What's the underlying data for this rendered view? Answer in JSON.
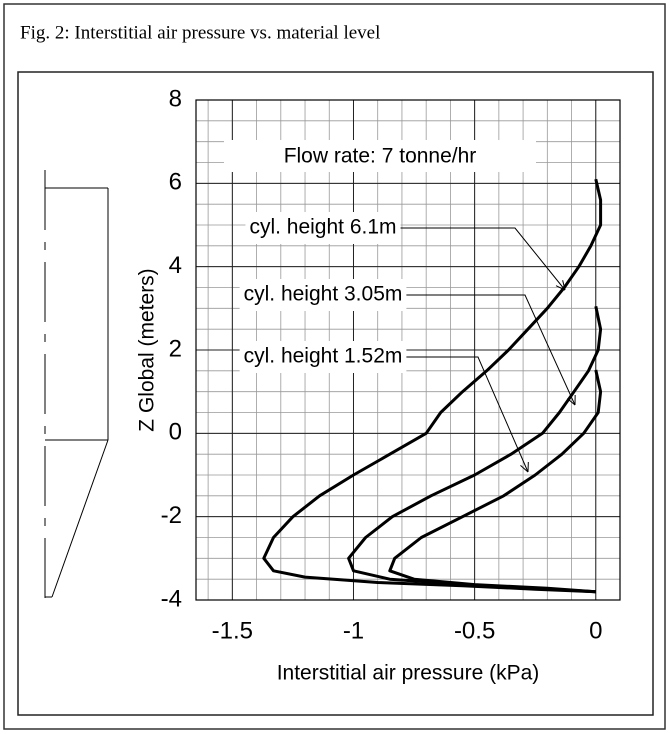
{
  "chart_data": {
    "type": "line",
    "caption": "Fig. 2: Interstitial air pressure vs. material level",
    "title": "Flow rate: 7 tonne/hr",
    "x_label": "Interstitial air pressure (kPa)",
    "y_label": "Z Global (meters)",
    "xlim": [
      -1.65,
      0.1
    ],
    "ylim": [
      -4,
      8
    ],
    "xticks": [
      -1.5,
      -1,
      -0.5,
      0
    ],
    "yticks": [
      -4,
      -2,
      0,
      2,
      4,
      6,
      8
    ],
    "minor_xticks": [
      -1.6,
      -1.5,
      -1.4,
      -1.3,
      -1.2,
      -1.1,
      -1,
      -0.9,
      -0.8,
      -0.7,
      -0.6,
      -0.5,
      -0.4,
      -0.3,
      -0.2,
      -0.1,
      0,
      0.1
    ],
    "minor_yticks": [
      -4,
      -3.5,
      -3,
      -2.5,
      -2,
      -1.5,
      -1,
      -0.5,
      0,
      0.5,
      1,
      1.5,
      2,
      2.5,
      3,
      3.5,
      4,
      4.5,
      5,
      5.5,
      6,
      6.5,
      7,
      7.5,
      8
    ],
    "grid": true,
    "series": [
      {
        "name": "cyl. height 6.1m",
        "color": "#000000",
        "x": [
          0,
          0.02,
          0.02,
          -0.02,
          -0.07,
          -0.13,
          -0.2,
          -0.28,
          -0.36,
          -0.45,
          -0.55,
          -0.64,
          -0.7,
          -0.85,
          -1.0,
          -1.14,
          -1.25,
          -1.33,
          -1.37,
          -1.33,
          -1.2,
          -0.9,
          -0.55,
          -0.25,
          0
        ],
        "values": [
          6.1,
          5.6,
          5,
          4.5,
          4,
          3.5,
          3,
          2.5,
          2,
          1.5,
          1,
          0.5,
          0,
          -0.5,
          -1,
          -1.5,
          -2,
          -2.5,
          -3,
          -3.3,
          -3.45,
          -3.58,
          -3.66,
          -3.74,
          -3.8
        ]
      },
      {
        "name": "cyl. height 3.05m",
        "color": "#000000",
        "x": [
          0,
          0.02,
          0.01,
          -0.03,
          -0.09,
          -0.15,
          -0.22,
          -0.35,
          -0.5,
          -0.68,
          -0.84,
          -0.95,
          -1.02,
          -1.0,
          -0.85,
          -0.55,
          -0.25,
          0
        ],
        "values": [
          3.05,
          2.5,
          2,
          1.5,
          1,
          0.5,
          0,
          -0.5,
          -1,
          -1.5,
          -2,
          -2.5,
          -3,
          -3.3,
          -3.5,
          -3.62,
          -3.72,
          -3.8
        ]
      },
      {
        "name": "cyl. height 1.52m",
        "color": "#000000",
        "x": [
          0,
          0.02,
          0.01,
          -0.05,
          -0.14,
          -0.25,
          -0.38,
          -0.55,
          -0.72,
          -0.83,
          -0.85,
          -0.75,
          -0.5,
          -0.2,
          0
        ],
        "values": [
          1.52,
          1,
          0.5,
          0,
          -0.5,
          -1,
          -1.5,
          -2,
          -2.5,
          -3,
          -3.3,
          -3.5,
          -3.63,
          -3.72,
          -3.8
        ]
      }
    ]
  }
}
